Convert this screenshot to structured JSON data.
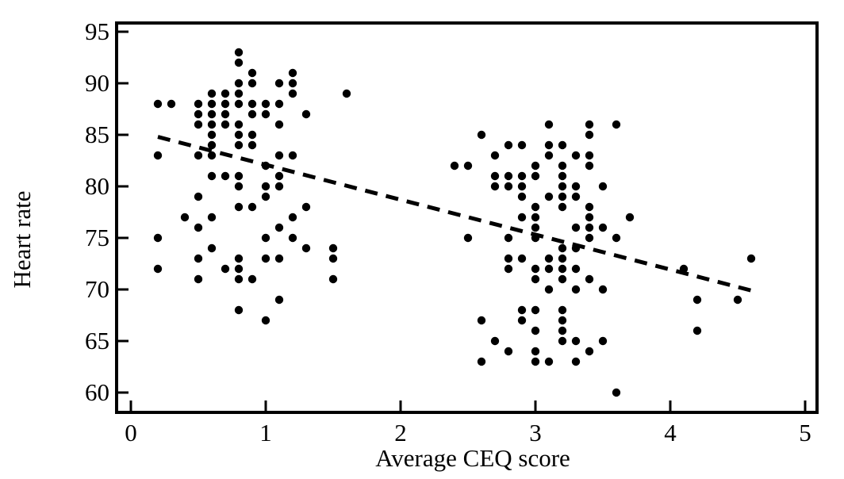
{
  "figure": {
    "background_color": "#ffffff",
    "ink_color": "#000000"
  },
  "chart_data": {
    "type": "scatter",
    "title": "",
    "xlabel": "Average CEQ score",
    "ylabel": "Heart rate",
    "xlim": [
      -0.1,
      5.1
    ],
    "ylim": [
      58.2,
      95.9
    ],
    "x_ticks": [
      0,
      1,
      2,
      3,
      4,
      5
    ],
    "y_ticks": [
      60,
      65,
      70,
      75,
      80,
      85,
      90,
      95
    ],
    "grid": false,
    "legend": false,
    "marker": "filled-black-dot",
    "points": [
      [
        0.8,
        93
      ],
      [
        0.8,
        92
      ],
      [
        0.9,
        91
      ],
      [
        1.2,
        91
      ],
      [
        0.8,
        90
      ],
      [
        0.9,
        90
      ],
      [
        1.1,
        90
      ],
      [
        1.2,
        90
      ],
      [
        0.6,
        89
      ],
      [
        0.7,
        89
      ],
      [
        0.8,
        89
      ],
      [
        1.2,
        89
      ],
      [
        1.6,
        89
      ],
      [
        0.2,
        88
      ],
      [
        0.3,
        88
      ],
      [
        0.5,
        88
      ],
      [
        0.6,
        88
      ],
      [
        0.7,
        88
      ],
      [
        0.8,
        88
      ],
      [
        0.9,
        88
      ],
      [
        1.0,
        88
      ],
      [
        1.1,
        88
      ],
      [
        0.5,
        87
      ],
      [
        0.6,
        87
      ],
      [
        0.7,
        87
      ],
      [
        0.9,
        87
      ],
      [
        1.0,
        87
      ],
      [
        1.3,
        87
      ],
      [
        0.5,
        86
      ],
      [
        0.6,
        86
      ],
      [
        0.7,
        86
      ],
      [
        0.8,
        86
      ],
      [
        1.1,
        86
      ],
      [
        0.6,
        85
      ],
      [
        0.8,
        85
      ],
      [
        0.9,
        85
      ],
      [
        0.6,
        84
      ],
      [
        0.8,
        84
      ],
      [
        0.9,
        84
      ],
      [
        0.2,
        83
      ],
      [
        0.5,
        83
      ],
      [
        0.6,
        83
      ],
      [
        1.1,
        83
      ],
      [
        1.2,
        83
      ],
      [
        1.0,
        82
      ],
      [
        0.6,
        81
      ],
      [
        0.7,
        81
      ],
      [
        0.8,
        81
      ],
      [
        1.1,
        81
      ],
      [
        0.8,
        80
      ],
      [
        1.0,
        80
      ],
      [
        1.1,
        80
      ],
      [
        0.5,
        79
      ],
      [
        1.0,
        79
      ],
      [
        0.8,
        78
      ],
      [
        0.9,
        78
      ],
      [
        1.3,
        78
      ],
      [
        0.4,
        77
      ],
      [
        0.6,
        77
      ],
      [
        1.2,
        77
      ],
      [
        0.5,
        76
      ],
      [
        1.1,
        76
      ],
      [
        0.2,
        75
      ],
      [
        1.0,
        75
      ],
      [
        1.2,
        75
      ],
      [
        0.6,
        74
      ],
      [
        1.3,
        74
      ],
      [
        1.5,
        74
      ],
      [
        0.5,
        73
      ],
      [
        0.8,
        73
      ],
      [
        1.0,
        73
      ],
      [
        1.1,
        73
      ],
      [
        1.5,
        73
      ],
      [
        0.2,
        72
      ],
      [
        0.7,
        72
      ],
      [
        0.8,
        72
      ],
      [
        0.5,
        71
      ],
      [
        0.8,
        71
      ],
      [
        0.9,
        71
      ],
      [
        1.5,
        71
      ],
      [
        1.1,
        69
      ],
      [
        0.8,
        68
      ],
      [
        1.0,
        67
      ],
      [
        3.1,
        86
      ],
      [
        3.4,
        86
      ],
      [
        3.6,
        86
      ],
      [
        2.6,
        85
      ],
      [
        3.4,
        85
      ],
      [
        2.8,
        84
      ],
      [
        2.9,
        84
      ],
      [
        3.1,
        84
      ],
      [
        3.2,
        84
      ],
      [
        2.7,
        83
      ],
      [
        3.1,
        83
      ],
      [
        3.3,
        83
      ],
      [
        3.4,
        83
      ],
      [
        2.4,
        82
      ],
      [
        2.5,
        82
      ],
      [
        3.0,
        82
      ],
      [
        3.2,
        82
      ],
      [
        3.4,
        82
      ],
      [
        2.7,
        81
      ],
      [
        2.8,
        81
      ],
      [
        2.9,
        81
      ],
      [
        3.0,
        81
      ],
      [
        3.2,
        81
      ],
      [
        2.7,
        80
      ],
      [
        2.8,
        80
      ],
      [
        2.9,
        80
      ],
      [
        3.2,
        80
      ],
      [
        3.3,
        80
      ],
      [
        3.5,
        80
      ],
      [
        2.9,
        79
      ],
      [
        3.1,
        79
      ],
      [
        3.2,
        79
      ],
      [
        3.3,
        79
      ],
      [
        3.0,
        78
      ],
      [
        3.2,
        78
      ],
      [
        3.4,
        78
      ],
      [
        2.9,
        77
      ],
      [
        3.0,
        77
      ],
      [
        3.4,
        77
      ],
      [
        3.7,
        77
      ],
      [
        3.0,
        76
      ],
      [
        3.3,
        76
      ],
      [
        3.4,
        76
      ],
      [
        3.5,
        76
      ],
      [
        2.5,
        75
      ],
      [
        2.8,
        75
      ],
      [
        3.0,
        75
      ],
      [
        3.4,
        75
      ],
      [
        3.6,
        75
      ],
      [
        3.2,
        74
      ],
      [
        3.3,
        74
      ],
      [
        2.8,
        73
      ],
      [
        2.9,
        73
      ],
      [
        3.1,
        73
      ],
      [
        3.2,
        73
      ],
      [
        4.6,
        73
      ],
      [
        2.8,
        72
      ],
      [
        3.0,
        72
      ],
      [
        3.1,
        72
      ],
      [
        3.2,
        72
      ],
      [
        3.3,
        72
      ],
      [
        4.1,
        72
      ],
      [
        3.0,
        71
      ],
      [
        3.2,
        71
      ],
      [
        3.4,
        71
      ],
      [
        3.1,
        70
      ],
      [
        3.3,
        70
      ],
      [
        3.5,
        70
      ],
      [
        4.2,
        69
      ],
      [
        4.5,
        69
      ],
      [
        2.9,
        68
      ],
      [
        3.0,
        68
      ],
      [
        3.2,
        68
      ],
      [
        2.6,
        67
      ],
      [
        2.9,
        67
      ],
      [
        3.2,
        67
      ],
      [
        3.0,
        66
      ],
      [
        3.2,
        66
      ],
      [
        4.2,
        66
      ],
      [
        2.7,
        65
      ],
      [
        3.2,
        65
      ],
      [
        3.3,
        65
      ],
      [
        3.5,
        65
      ],
      [
        2.8,
        64
      ],
      [
        3.0,
        64
      ],
      [
        3.4,
        64
      ],
      [
        2.6,
        63
      ],
      [
        3.0,
        63
      ],
      [
        3.1,
        63
      ],
      [
        3.3,
        63
      ],
      [
        3.6,
        60
      ]
    ],
    "trend_line": {
      "style": "dashed",
      "x1": 0.2,
      "y1": 84.8,
      "x2": 4.6,
      "y2": 69.9,
      "slope_per_unit": -3.4,
      "intercept": 85.5
    }
  }
}
